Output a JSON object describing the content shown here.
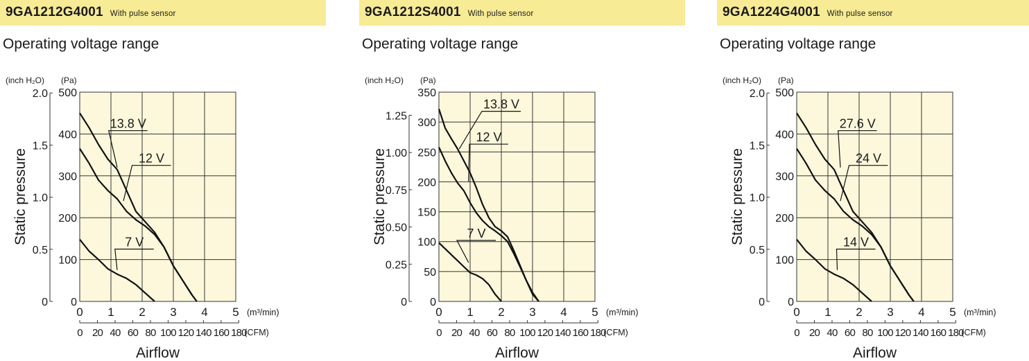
{
  "panels": [
    {
      "model": "9GA1212G4001",
      "note": "With pulse sensor",
      "subtitle": "Operating voltage range",
      "chart_data": {
        "type": "line",
        "xlabel": "Airflow",
        "ylabel": "Static pressure",
        "x_unit_primary": "(m³/min)",
        "x_unit_secondary": "(CFM)",
        "y_unit_primary": "(Pa)",
        "y_unit_secondary": "(inch H₂O)",
        "xlim": [
          0,
          5
        ],
        "ylim": [
          0,
          500
        ],
        "x_ticks": [
          "0",
          "1",
          "2",
          "3",
          "4",
          "5"
        ],
        "cfm_ticks": [
          "0",
          "20",
          "40",
          "60",
          "80",
          "100",
          "120",
          "140",
          "160",
          "180"
        ],
        "y_ticks": [
          "0",
          "100",
          "200",
          "300",
          "400",
          "500"
        ],
        "y2_ticks": [
          {
            "value": 0,
            "label": "0"
          },
          {
            "value": 124.5,
            "label": "0.5"
          },
          {
            "value": 249,
            "label": "1.0"
          },
          {
            "value": 373.5,
            "label": "1.5"
          },
          {
            "value": 498,
            "label": "2.0"
          }
        ],
        "grid": true,
        "series": [
          {
            "name": "13.8 V",
            "label_at": [
              1.55,
              408
            ],
            "leader": [
              1.2,
              320
            ],
            "x": [
              0,
              0.3,
              0.6,
              0.9,
              1.2,
              1.5,
              1.8,
              2.1,
              2.4,
              2.7,
              3.0,
              3.3,
              3.6,
              3.75
            ],
            "y": [
              450,
              415,
              375,
              340,
              315,
              265,
              215,
              190,
              165,
              130,
              85,
              50,
              15,
              0
            ]
          },
          {
            "name": "12 V",
            "label_at": [
              2.3,
              325
            ],
            "leader": [
              1.4,
              240
            ],
            "x": [
              0,
              0.3,
              0.6,
              0.9,
              1.2,
              1.5,
              1.8,
              2.1,
              2.4,
              2.7,
              3.0,
              3.3,
              3.6,
              3.75
            ],
            "y": [
              365,
              330,
              290,
              265,
              245,
              215,
              195,
              180,
              160,
              130,
              85,
              50,
              15,
              0
            ]
          },
          {
            "name": "7 V",
            "label_at": [
              1.75,
              125
            ],
            "leader": [
              1.2,
              75
            ],
            "x": [
              0,
              0.3,
              0.6,
              0.9,
              1.2,
              1.5,
              1.8,
              2.1,
              2.4
            ],
            "y": [
              148,
              120,
              100,
              78,
              65,
              55,
              40,
              20,
              0
            ]
          }
        ]
      }
    },
    {
      "model": "9GA1212S4001",
      "note": "With pulse sensor",
      "subtitle": "Operating voltage range",
      "chart_data": {
        "type": "line",
        "xlabel": "Airflow",
        "ylabel": "Static pressure",
        "x_unit_primary": "(m³/min)",
        "x_unit_secondary": "(CFM)",
        "y_unit_primary": "(Pa)",
        "y_unit_secondary": "(inch H₂O)",
        "xlim": [
          0,
          5
        ],
        "ylim": [
          0,
          350
        ],
        "x_ticks": [
          "0",
          "1",
          "2",
          "3",
          "4",
          "5"
        ],
        "cfm_ticks": [
          "0",
          "20",
          "40",
          "60",
          "80",
          "100",
          "120",
          "140",
          "160",
          "180"
        ],
        "y_ticks": [
          "0",
          "50",
          "100",
          "150",
          "200",
          "250",
          "300",
          "350"
        ],
        "y2_ticks": [
          {
            "value": 0,
            "label": "0"
          },
          {
            "value": 62.25,
            "label": "0.25"
          },
          {
            "value": 124.5,
            "label": "0.50"
          },
          {
            "value": 186.75,
            "label": "0.75"
          },
          {
            "value": 249,
            "label": "1.00"
          },
          {
            "value": 311.25,
            "label": "1.25"
          }
        ],
        "grid": true,
        "series": [
          {
            "name": "13.8 V",
            "label_at": [
              2.0,
              318
            ],
            "leader": [
              0.65,
              255
            ],
            "x": [
              0,
              0.2,
              0.4,
              0.6,
              0.8,
              1.0,
              1.2,
              1.4,
              1.6,
              1.8,
              2.0,
              2.2,
              2.4,
              2.6,
              2.8,
              3.0,
              3.2
            ],
            "y": [
              322,
              290,
              272,
              255,
              235,
              215,
              190,
              162,
              140,
              125,
              118,
              108,
              85,
              60,
              35,
              15,
              0
            ]
          },
          {
            "name": "12 V",
            "label_at": [
              1.6,
              263
            ],
            "leader": [
              0.95,
              200
            ],
            "x": [
              0,
              0.2,
              0.4,
              0.6,
              0.8,
              1.0,
              1.2,
              1.4,
              1.6,
              1.8,
              2.0,
              2.2,
              2.4,
              2.6,
              2.8,
              3.0,
              3.2
            ],
            "y": [
              258,
              235,
              215,
              198,
              185,
              165,
              148,
              135,
              125,
              118,
              110,
              100,
              80,
              58,
              35,
              12,
              0
            ]
          },
          {
            "name": "7 V",
            "label_at": [
              1.2,
              102
            ],
            "leader": [
              0.95,
              65
            ],
            "x": [
              0,
              0.2,
              0.4,
              0.6,
              0.8,
              1.0,
              1.2,
              1.4,
              1.6,
              1.8,
              2.0
            ],
            "y": [
              98,
              88,
              78,
              68,
              58,
              48,
              44,
              38,
              28,
              12,
              0
            ]
          }
        ]
      }
    },
    {
      "model": "9GA1224G4001",
      "note": "With pulse sensor",
      "subtitle": "Operating voltage range",
      "chart_data": {
        "type": "line",
        "xlabel": "Airflow",
        "ylabel": "Static pressure",
        "x_unit_primary": "(m³/min)",
        "x_unit_secondary": "(CFM)",
        "y_unit_primary": "(Pa)",
        "y_unit_secondary": "(inch H₂O)",
        "xlim": [
          0,
          5
        ],
        "ylim": [
          0,
          500
        ],
        "x_ticks": [
          "0",
          "1",
          "2",
          "3",
          "4",
          "5"
        ],
        "cfm_ticks": [
          "0",
          "20",
          "40",
          "60",
          "80",
          "100",
          "120",
          "140",
          "160",
          "180"
        ],
        "y_ticks": [
          "0",
          "100",
          "200",
          "300",
          "400",
          "500"
        ],
        "y2_ticks": [
          {
            "value": 0,
            "label": "0"
          },
          {
            "value": 124.5,
            "label": "0.5"
          },
          {
            "value": 249,
            "label": "1.0"
          },
          {
            "value": 373.5,
            "label": "1.5"
          },
          {
            "value": 498,
            "label": "2.0"
          }
        ],
        "grid": true,
        "series": [
          {
            "name": "27.6 V",
            "label_at": [
              1.95,
              408
            ],
            "leader": [
              1.4,
              320
            ],
            "x": [
              0,
              0.3,
              0.6,
              0.9,
              1.2,
              1.5,
              1.8,
              2.1,
              2.4,
              2.7,
              3.0,
              3.3,
              3.6,
              3.75
            ],
            "y": [
              450,
              415,
              375,
              340,
              315,
              265,
              215,
              190,
              165,
              130,
              85,
              50,
              15,
              0
            ]
          },
          {
            "name": "24 V",
            "label_at": [
              2.3,
              325
            ],
            "leader": [
              1.4,
              240
            ],
            "x": [
              0,
              0.3,
              0.6,
              0.9,
              1.2,
              1.5,
              1.8,
              2.1,
              2.4,
              2.7,
              3.0,
              3.3,
              3.6,
              3.75
            ],
            "y": [
              365,
              330,
              290,
              265,
              245,
              215,
              195,
              180,
              160,
              130,
              85,
              50,
              15,
              0
            ]
          },
          {
            "name": "14 V",
            "label_at": [
              1.9,
              125
            ],
            "leader": [
              1.3,
              75
            ],
            "x": [
              0,
              0.3,
              0.6,
              0.9,
              1.2,
              1.5,
              1.8,
              2.1,
              2.4
            ],
            "y": [
              148,
              120,
              100,
              78,
              65,
              55,
              40,
              20,
              0
            ]
          }
        ]
      }
    }
  ]
}
